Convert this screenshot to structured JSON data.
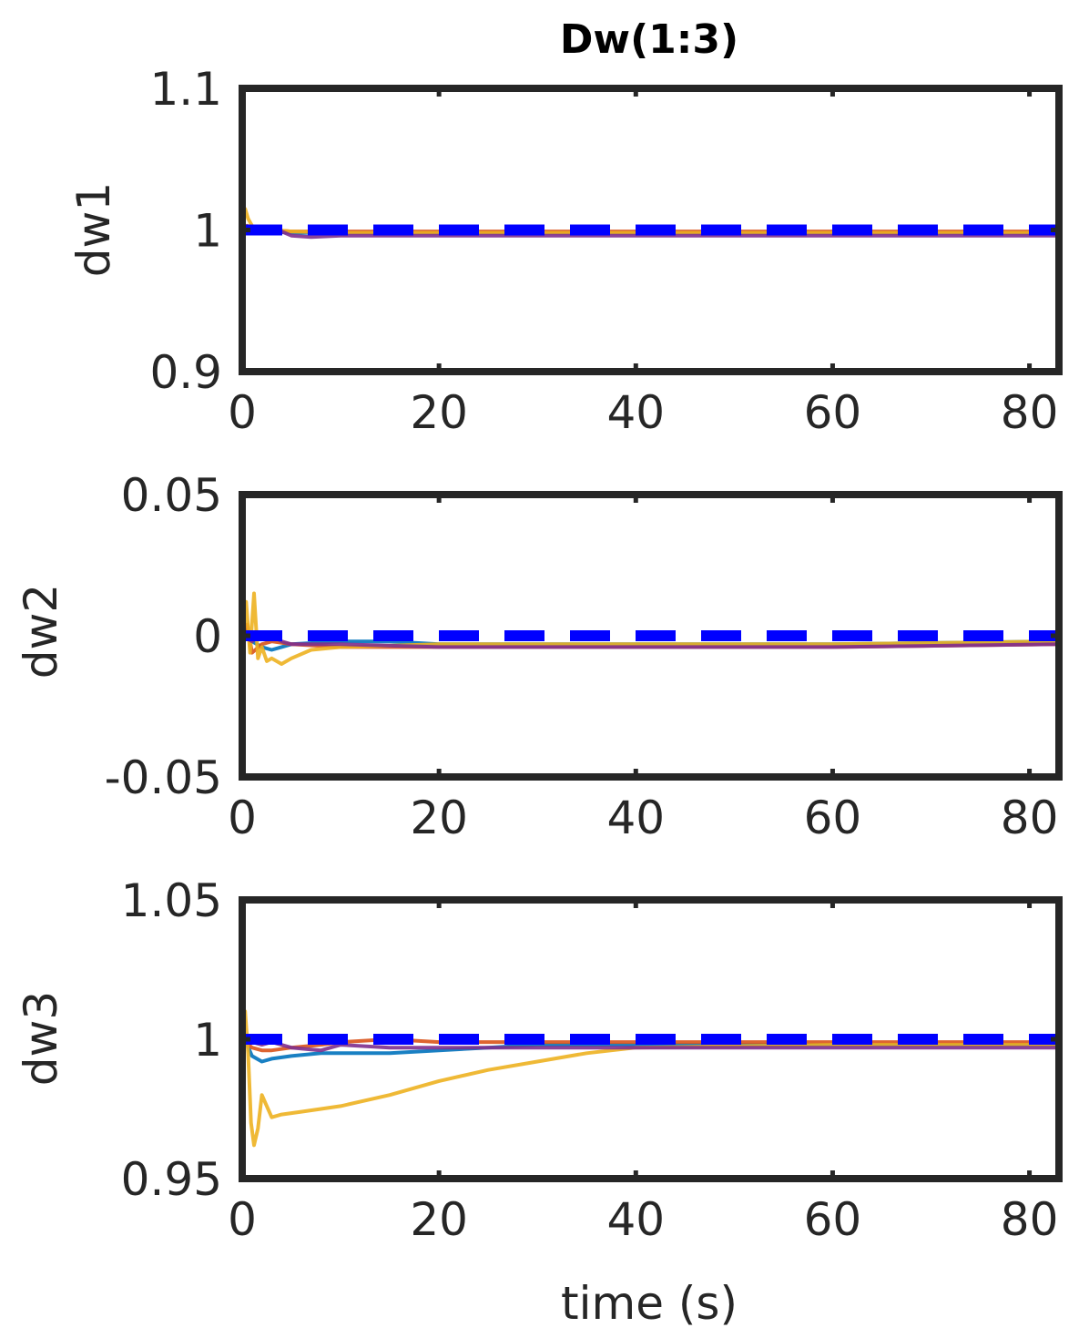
{
  "chart_data": {
    "title": "Dw(1:3)",
    "xlabel": "time (s)",
    "colors": {
      "reference": "#0000ff",
      "trace_blue": "#0072bd",
      "trace_red": "#d95319",
      "trace_yellow": "#edb120",
      "trace_purple": "#7e2f8e",
      "axes": "#262626"
    },
    "panels": [
      {
        "type": "line",
        "ylabel": "dw1",
        "xlim": [
          0,
          83
        ],
        "ylim": [
          0.9,
          1.1
        ],
        "xticks": [
          "0",
          "20",
          "40",
          "60",
          "80"
        ],
        "xtick_values": [
          0,
          20,
          40,
          60,
          80
        ],
        "yticks": [
          "0.9",
          "1",
          "1.1"
        ],
        "ytick_values": [
          0.9,
          1.0,
          1.1
        ],
        "reference": {
          "style": "dashed",
          "value": 1.0
        },
        "series": [
          {
            "color": "trace_blue",
            "x": [
              0,
              0.5,
              1,
              2,
              3,
              5,
              10,
              20,
              40,
              60,
              83
            ],
            "y": [
              0.998,
              1.001,
              0.999,
              1.0,
              0.999,
              0.998,
              0.998,
              0.998,
              0.998,
              0.998,
              0.998
            ]
          },
          {
            "color": "trace_red",
            "x": [
              0,
              0.5,
              1,
              2,
              3,
              5,
              10,
              20,
              40,
              60,
              83
            ],
            "y": [
              1.0,
              1.003,
              1.001,
              1.0,
              1.0,
              0.999,
              0.999,
              0.999,
              0.999,
              0.999,
              0.999
            ]
          },
          {
            "color": "trace_yellow",
            "x": [
              0,
              0.3,
              0.6,
              1,
              1.5,
              2,
              3,
              5,
              10,
              20,
              40,
              60,
              83
            ],
            "y": [
              1.0,
              1.015,
              1.008,
              1.003,
              1.001,
              1.0,
              1.0,
              0.999,
              0.998,
              0.998,
              0.998,
              0.998,
              0.998
            ]
          },
          {
            "color": "trace_purple",
            "x": [
              0,
              1,
              2,
              3,
              4,
              5,
              7,
              10,
              20,
              40,
              60,
              83
            ],
            "y": [
              1.0,
              1.001,
              1.002,
              1.001,
              0.999,
              0.996,
              0.995,
              0.996,
              0.996,
              0.996,
              0.996,
              0.996
            ]
          }
        ]
      },
      {
        "type": "line",
        "ylabel": "dw2",
        "xlim": [
          0,
          83
        ],
        "ylim": [
          -0.05,
          0.05
        ],
        "xticks": [
          "0",
          "20",
          "40",
          "60",
          "80"
        ],
        "xtick_values": [
          0,
          20,
          40,
          60,
          80
        ],
        "yticks": [
          "-0.05",
          "0",
          "0.05"
        ],
        "ytick_values": [
          -0.05,
          0.0,
          0.05
        ],
        "reference": {
          "style": "dashed",
          "value": 0.0
        },
        "series": [
          {
            "color": "trace_blue",
            "x": [
              0,
              0.5,
              1,
              2,
              3,
              4,
              5,
              10,
              15,
              20,
              40,
              60,
              83
            ],
            "y": [
              0.0,
              0.002,
              -0.002,
              -0.004,
              -0.005,
              -0.004,
              -0.003,
              -0.002,
              -0.002,
              -0.003,
              -0.003,
              -0.003,
              -0.002
            ]
          },
          {
            "color": "trace_red",
            "x": [
              0,
              0.5,
              1,
              2,
              3,
              5,
              10,
              20,
              40,
              60,
              83
            ],
            "y": [
              0.0,
              0.004,
              -0.006,
              -0.003,
              -0.002,
              -0.003,
              -0.004,
              -0.004,
              -0.004,
              -0.004,
              -0.003
            ]
          },
          {
            "color": "trace_yellow",
            "x": [
              0,
              0.4,
              0.8,
              1.2,
              1.6,
              2,
              2.5,
              3,
              4,
              5,
              7,
              10,
              20,
              40,
              60,
              83
            ],
            "y": [
              0.0,
              0.012,
              -0.006,
              0.015,
              -0.008,
              -0.004,
              -0.009,
              -0.008,
              -0.01,
              -0.008,
              -0.005,
              -0.004,
              -0.003,
              -0.003,
              -0.003,
              -0.002
            ]
          },
          {
            "color": "trace_purple",
            "x": [
              0,
              1,
              2,
              3,
              4,
              5,
              10,
              20,
              40,
              60,
              83
            ],
            "y": [
              0.0,
              -0.002,
              0.001,
              0.0,
              -0.002,
              -0.003,
              -0.003,
              -0.004,
              -0.004,
              -0.004,
              -0.003
            ]
          }
        ]
      },
      {
        "type": "line",
        "ylabel": "dw3",
        "xlabel": "time (s)",
        "xlim": [
          0,
          83
        ],
        "ylim": [
          0.95,
          1.05
        ],
        "xticks": [
          "0",
          "20",
          "40",
          "60",
          "80"
        ],
        "xtick_values": [
          0,
          20,
          40,
          60,
          80
        ],
        "yticks": [
          "0.95",
          "1",
          "1.05"
        ],
        "ytick_values": [
          0.95,
          1.0,
          1.05
        ],
        "reference": {
          "style": "dashed",
          "value": 1.0
        },
        "series": [
          {
            "color": "trace_blue",
            "x": [
              0,
              0.5,
              1,
              2,
              3,
              5,
              8,
              10,
              15,
              20,
              25,
              30,
              40,
              60,
              83
            ],
            "y": [
              1.0,
              0.998,
              0.994,
              0.992,
              0.993,
              0.994,
              0.995,
              0.995,
              0.995,
              0.996,
              0.997,
              0.998,
              0.998,
              0.998,
              0.998
            ]
          },
          {
            "color": "trace_red",
            "x": [
              0,
              1,
              2,
              3,
              5,
              8,
              10,
              15,
              20,
              30,
              40,
              60,
              83
            ],
            "y": [
              1.0,
              0.997,
              0.996,
              0.996,
              0.997,
              0.998,
              0.999,
              1.0,
              0.999,
              0.999,
              0.999,
              0.999,
              0.999
            ]
          },
          {
            "color": "trace_yellow",
            "x": [
              0,
              0.3,
              0.6,
              0.9,
              1.2,
              1.6,
              2,
              2.5,
              3,
              4,
              6,
              10,
              15,
              20,
              25,
              30,
              35,
              40,
              60,
              83
            ],
            "y": [
              1.0,
              1.01,
              0.995,
              0.97,
              0.962,
              0.968,
              0.98,
              0.976,
              0.972,
              0.973,
              0.974,
              0.976,
              0.98,
              0.985,
              0.989,
              0.992,
              0.995,
              0.997,
              0.998,
              0.998
            ]
          },
          {
            "color": "trace_purple",
            "x": [
              0,
              1,
              2,
              3,
              5,
              8,
              10,
              15,
              20,
              40,
              60,
              83
            ],
            "y": [
              1.0,
              0.999,
              0.998,
              0.999,
              0.997,
              0.996,
              0.998,
              0.997,
              0.997,
              0.997,
              0.997,
              0.997
            ]
          }
        ]
      }
    ]
  }
}
